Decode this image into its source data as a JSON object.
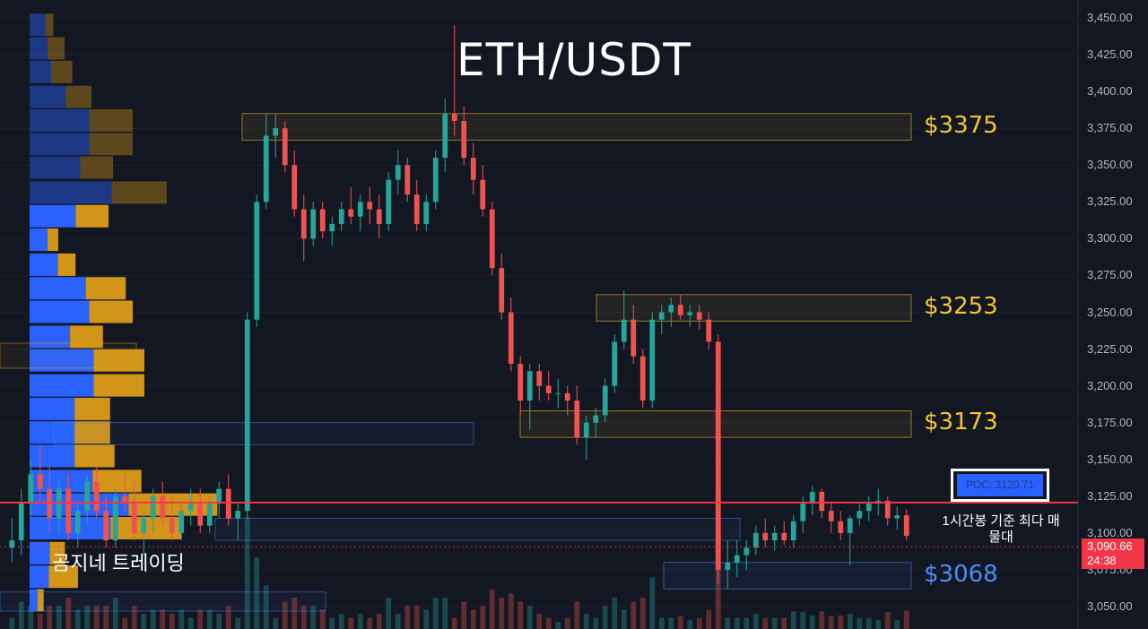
{
  "chart_data": {
    "type": "candlestick",
    "title": "ETH/USDT",
    "timeframe_note": "1시간봉 기준 최다 매물대",
    "watermark": "곰지네 트레이딩",
    "ylim": [
      3043,
      3460
    ],
    "y_ticks": [
      "3,450.00",
      "3,425.00",
      "3,400.00",
      "3,375.00",
      "3,350.00",
      "3,325.00",
      "3,300.00",
      "3,275.00",
      "3,250.00",
      "3,225.00",
      "3,200.00",
      "3,175.00",
      "3,150.00",
      "3,125.00",
      "3,100.00",
      "3,075.00",
      "3,050.00"
    ],
    "current_price": "3,090.66",
    "countdown": "24:38",
    "poc_label": "POC: 3120.71",
    "poc_value": 3120.71,
    "levels": [
      {
        "label": "$3375",
        "low": 3367,
        "high": 3385,
        "color": "#f7c531"
      },
      {
        "label": "$3253",
        "low": 3244,
        "high": 3262,
        "color": "#f7c531"
      },
      {
        "label": "$3173",
        "low": 3165,
        "high": 3183,
        "color": "#f7c531"
      },
      {
        "label": "$3068",
        "low": 3062,
        "high": 3080,
        "color": "#4a8df8"
      }
    ],
    "volume_profile": [
      {
        "price": 3445,
        "buy": 0.14,
        "sell": 0.09,
        "faded": true
      },
      {
        "price": 3429,
        "buy": 0.16,
        "sell": 0.19,
        "faded": true
      },
      {
        "price": 3413,
        "buy": 0.19,
        "sell": 0.24,
        "faded": true
      },
      {
        "price": 3396,
        "buy": 0.32,
        "sell": 0.29,
        "faded": true
      },
      {
        "price": 3380,
        "buy": 0.53,
        "sell": 0.49,
        "faded": true
      },
      {
        "price": 3364,
        "buy": 0.53,
        "sell": 0.49,
        "faded": true
      },
      {
        "price": 3348,
        "buy": 0.45,
        "sell": 0.37,
        "faded": true
      },
      {
        "price": 3331,
        "buy": 0.73,
        "sell": 0.62,
        "faded": true
      },
      {
        "price": 3315,
        "buy": 0.41,
        "sell": 0.37,
        "faded": false
      },
      {
        "price": 3299,
        "buy": 0.16,
        "sell": 0.12,
        "faded": false
      },
      {
        "price": 3282,
        "buy": 0.25,
        "sell": 0.2,
        "faded": false
      },
      {
        "price": 3266,
        "buy": 0.5,
        "sell": 0.45,
        "faded": false
      },
      {
        "price": 3250,
        "buy": 0.53,
        "sell": 0.49,
        "faded": false
      },
      {
        "price": 3233,
        "buy": 0.36,
        "sell": 0.37,
        "faded": false
      },
      {
        "price": 3217,
        "buy": 0.57,
        "sell": 0.57,
        "faded": false
      },
      {
        "price": 3200,
        "buy": 0.57,
        "sell": 0.57,
        "faded": false
      },
      {
        "price": 3184,
        "buy": 0.4,
        "sell": 0.4,
        "faded": false
      },
      {
        "price": 3168,
        "buy": 0.4,
        "sell": 0.4,
        "faded": false
      },
      {
        "price": 3152,
        "buy": 0.4,
        "sell": 0.45,
        "faded": false
      },
      {
        "price": 3135,
        "buy": 0.56,
        "sell": 0.55,
        "faded": false
      },
      {
        "price": 3119,
        "buy": 0.88,
        "sell": 1.0,
        "faded": false
      },
      {
        "price": 3103,
        "buy": 0.72,
        "sell": 0.8,
        "faded": false
      },
      {
        "price": 3086,
        "buy": 0.18,
        "sell": 0.17,
        "faded": false
      },
      {
        "price": 3070,
        "buy": 0.17,
        "sell": 0.33,
        "faded": false
      },
      {
        "price": 3054,
        "buy": 0.07,
        "sell": 0.07,
        "faded": false
      }
    ],
    "candles": [
      [
        3090,
        3110,
        3080,
        3095
      ],
      [
        3095,
        3130,
        3085,
        3120
      ],
      [
        3120,
        3150,
        3110,
        3140
      ],
      [
        3140,
        3160,
        3120,
        3130
      ],
      [
        3130,
        3145,
        3100,
        3110
      ],
      [
        3110,
        3135,
        3100,
        3130
      ],
      [
        3130,
        3140,
        3095,
        3100
      ],
      [
        3100,
        3120,
        3090,
        3115
      ],
      [
        3115,
        3140,
        3105,
        3135
      ],
      [
        3135,
        3145,
        3110,
        3115
      ],
      [
        3115,
        3125,
        3090,
        3095
      ],
      [
        3095,
        3130,
        3090,
        3125
      ],
      [
        3125,
        3140,
        3115,
        3120
      ],
      [
        3120,
        3135,
        3095,
        3100
      ],
      [
        3100,
        3115,
        3085,
        3110
      ],
      [
        3110,
        3130,
        3100,
        3125
      ],
      [
        3125,
        3135,
        3105,
        3110
      ],
      [
        3110,
        3125,
        3095,
        3100
      ],
      [
        3100,
        3120,
        3095,
        3115
      ],
      [
        3115,
        3130,
        3105,
        3120
      ],
      [
        3120,
        3130,
        3100,
        3105
      ],
      [
        3105,
        3125,
        3100,
        3120
      ],
      [
        3120,
        3135,
        3110,
        3130
      ],
      [
        3130,
        3140,
        3105,
        3110
      ],
      [
        3110,
        3120,
        3095,
        3115
      ],
      [
        3115,
        3250,
        3110,
        3245
      ],
      [
        3245,
        3330,
        3240,
        3325
      ],
      [
        3325,
        3385,
        3320,
        3370
      ],
      [
        3370,
        3385,
        3355,
        3375
      ],
      [
        3375,
        3380,
        3345,
        3350
      ],
      [
        3350,
        3360,
        3315,
        3320
      ],
      [
        3320,
        3330,
        3285,
        3300
      ],
      [
        3300,
        3325,
        3295,
        3320
      ],
      [
        3320,
        3325,
        3300,
        3305
      ],
      [
        3305,
        3315,
        3295,
        3310
      ],
      [
        3310,
        3325,
        3305,
        3320
      ],
      [
        3320,
        3335,
        3310,
        3315
      ],
      [
        3315,
        3330,
        3305,
        3325
      ],
      [
        3325,
        3335,
        3310,
        3320
      ],
      [
        3320,
        3330,
        3300,
        3310
      ],
      [
        3310,
        3345,
        3305,
        3340
      ],
      [
        3340,
        3360,
        3330,
        3350
      ],
      [
        3350,
        3355,
        3325,
        3330
      ],
      [
        3330,
        3340,
        3305,
        3310
      ],
      [
        3310,
        3330,
        3305,
        3325
      ],
      [
        3325,
        3360,
        3320,
        3355
      ],
      [
        3355,
        3395,
        3345,
        3385
      ],
      [
        3385,
        3445,
        3370,
        3380
      ],
      [
        3380,
        3390,
        3350,
        3355
      ],
      [
        3355,
        3365,
        3330,
        3340
      ],
      [
        3340,
        3350,
        3315,
        3320
      ],
      [
        3320,
        3325,
        3275,
        3280
      ],
      [
        3280,
        3290,
        3245,
        3250
      ],
      [
        3250,
        3260,
        3210,
        3215
      ],
      [
        3215,
        3220,
        3180,
        3190
      ],
      [
        3190,
        3215,
        3170,
        3210
      ],
      [
        3210,
        3215,
        3190,
        3200
      ],
      [
        3200,
        3210,
        3190,
        3195
      ],
      [
        3195,
        3205,
        3185,
        3195
      ],
      [
        3195,
        3200,
        3180,
        3190
      ],
      [
        3190,
        3200,
        3160,
        3165
      ],
      [
        3165,
        3180,
        3150,
        3175
      ],
      [
        3175,
        3185,
        3165,
        3180
      ],
      [
        3180,
        3205,
        3175,
        3200
      ],
      [
        3200,
        3235,
        3195,
        3230
      ],
      [
        3230,
        3265,
        3225,
        3245
      ],
      [
        3245,
        3255,
        3215,
        3220
      ],
      [
        3220,
        3225,
        3185,
        3190
      ],
      [
        3190,
        3250,
        3185,
        3245
      ],
      [
        3245,
        3255,
        3235,
        3250
      ],
      [
        3250,
        3260,
        3240,
        3255
      ],
      [
        3255,
        3262,
        3245,
        3248
      ],
      [
        3248,
        3255,
        3240,
        3250
      ],
      [
        3250,
        3255,
        3238,
        3245
      ],
      [
        3245,
        3250,
        3225,
        3230
      ],
      [
        3230,
        3235,
        3065,
        3075
      ],
      [
        3075,
        3095,
        3062,
        3080
      ],
      [
        3080,
        3095,
        3070,
        3085
      ],
      [
        3085,
        3095,
        3075,
        3090
      ],
      [
        3090,
        3105,
        3085,
        3100
      ],
      [
        3100,
        3110,
        3090,
        3095
      ],
      [
        3095,
        3105,
        3088,
        3100
      ],
      [
        3100,
        3108,
        3092,
        3095
      ],
      [
        3095,
        3112,
        3090,
        3108
      ],
      [
        3108,
        3125,
        3100,
        3120
      ],
      [
        3120,
        3132,
        3112,
        3128
      ],
      [
        3128,
        3130,
        3110,
        3115
      ],
      [
        3115,
        3120,
        3100,
        3108
      ],
      [
        3108,
        3115,
        3095,
        3100
      ],
      [
        3100,
        3112,
        3078,
        3110
      ],
      [
        3110,
        3120,
        3105,
        3115
      ],
      [
        3115,
        3125,
        3108,
        3120
      ],
      [
        3120,
        3130,
        3112,
        3122
      ],
      [
        3122,
        3125,
        3105,
        3110
      ],
      [
        3110,
        3118,
        3102,
        3112
      ],
      [
        3112,
        3116,
        3095,
        3098
      ]
    ]
  }
}
